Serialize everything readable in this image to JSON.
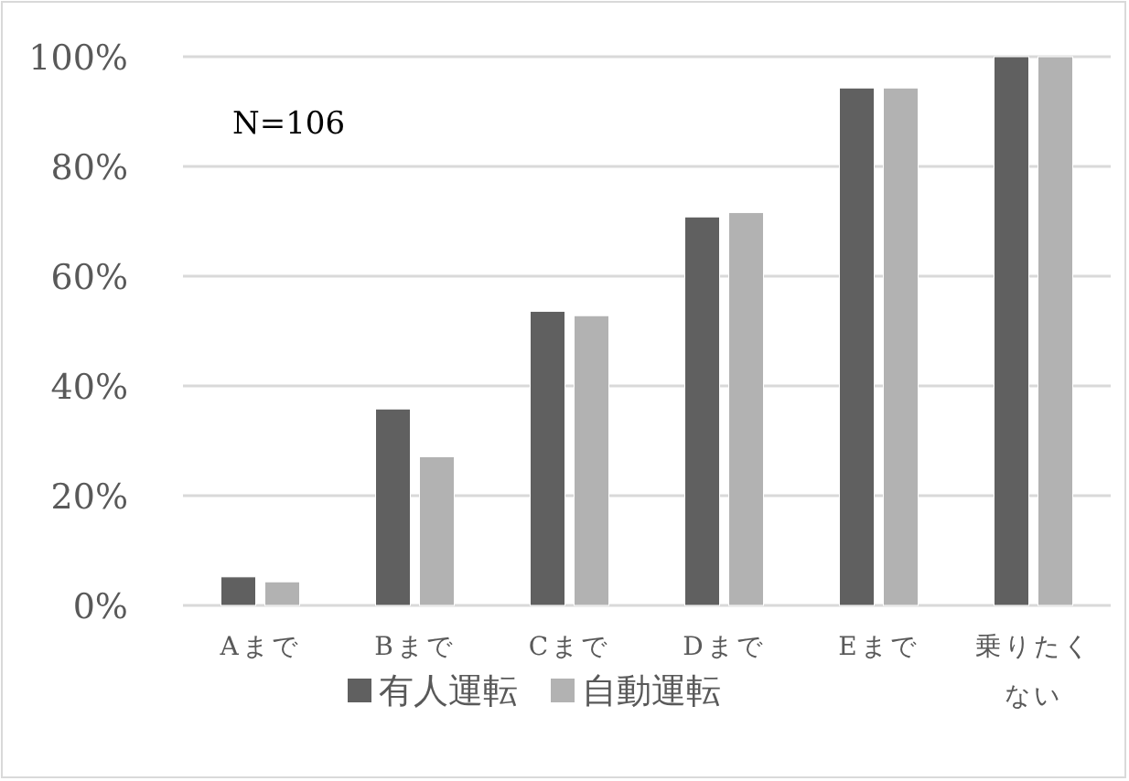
{
  "chart_data": {
    "type": "bar",
    "categories": [
      "Aまで",
      "Bまで",
      "Cまで",
      "Dまで",
      "Eまで",
      "乗りたくない"
    ],
    "series": [
      {
        "name": "有人運転",
        "color": "#606060",
        "values": [
          5.2,
          35.8,
          53.6,
          70.8,
          94.3,
          100
        ]
      },
      {
        "name": "自動運転",
        "color": "#b2b2b2",
        "values": [
          4.3,
          27.1,
          52.8,
          71.6,
          94.3,
          100
        ]
      }
    ],
    "ylim": [
      0,
      100
    ],
    "yticks": [
      {
        "value": 0,
        "label": "0%"
      },
      {
        "value": 20,
        "label": "20%"
      },
      {
        "value": 40,
        "label": "40%"
      },
      {
        "value": 60,
        "label": "60%"
      },
      {
        "value": 80,
        "label": "80%"
      },
      {
        "value": 100,
        "label": "100%"
      }
    ],
    "grid": "y",
    "legend": "bottom",
    "annotations": [
      "N=106"
    ]
  }
}
